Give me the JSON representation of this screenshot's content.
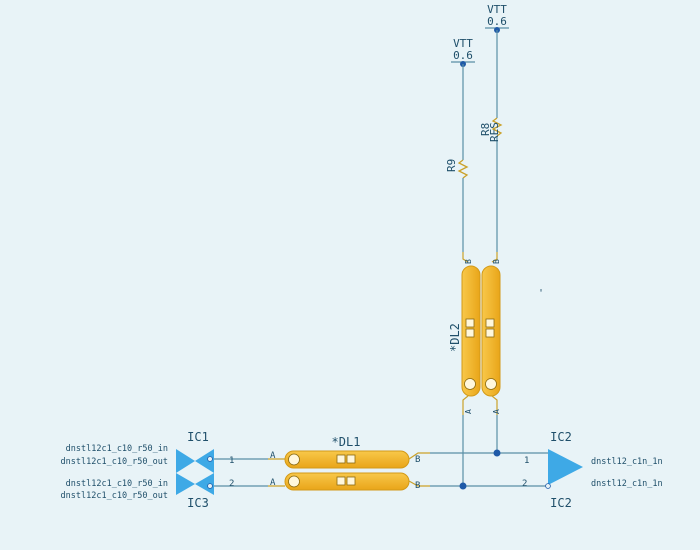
{
  "colors": {
    "background": "#e8f3f7",
    "wire": "#5a8fa6",
    "net_node": "#1f5aa8",
    "component_fill": "#f3b62d",
    "buffer_fill": "#3ea9e6",
    "text": "#1f4f6a"
  },
  "vtt": [
    {
      "name": "VTT",
      "value": "0.6"
    },
    {
      "name": "VTT",
      "value": "0.6"
    }
  ],
  "resistors": {
    "r9": {
      "ref": "R9"
    },
    "r8": {
      "ref": "R8",
      "value": "RES"
    }
  },
  "dl1": {
    "ref": "*DL1",
    "pin_a": "A",
    "pin_b": "B"
  },
  "dl2": {
    "ref": "*DL2",
    "pin_a": "A",
    "pin_b": "B"
  },
  "ic1": {
    "ref_top": "IC1",
    "ref_bottom": "IC3",
    "net_top_in": "dnstl12c1_c10_r50_in",
    "net_top_out": "dnstl12c1_c10_r50_out",
    "net_bot_in": "dnstl12c1_c10_r50_in",
    "net_bot_out": "dnstl12c1_c10_r50_out",
    "pin1": "1",
    "pin2": "2"
  },
  "ic2": {
    "ref_top": "IC2",
    "ref_bottom": "IC2",
    "net_top": "dnstl12_c1n_1n",
    "net_bottom": "dnstl12_c1n_1n",
    "pin1": "1",
    "pin2": "2"
  },
  "stray_mark": "'"
}
